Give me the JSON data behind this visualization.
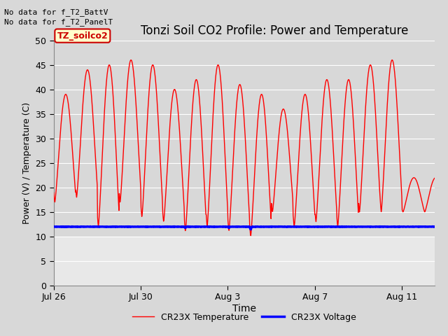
{
  "title": "Tonzi Soil CO2 Profile: Power and Temperature",
  "ylabel": "Power (V) / Temperature (C)",
  "xlabel": "Time",
  "ylim": [
    0,
    50
  ],
  "yticks": [
    0,
    5,
    10,
    15,
    20,
    25,
    30,
    35,
    40,
    45,
    50
  ],
  "background_color": "#d8d8d8",
  "plot_bg_color": "#d8d8d8",
  "no_data_text1": "No data for f_T2_BattV",
  "no_data_text2": "No data for f_T2_PanelT",
  "legend_label1": "CR23X Temperature",
  "legend_label2": "CR23X Voltage",
  "box_label": "TZ_soilco2",
  "box_facecolor": "#ffffcc",
  "box_edgecolor": "#cc0000",
  "temp_color": "#ff0000",
  "voltage_color": "#0000ff",
  "temp_linewidth": 1.0,
  "voltage_linewidth": 2.5,
  "voltage_value": 12.0,
  "xtick_labels": [
    "Jul 26",
    "Jul 30",
    "Aug 3",
    "Aug 7",
    "Aug 11"
  ],
  "xtick_days": [
    0,
    4,
    8,
    12,
    16
  ],
  "total_days": 17.5,
  "grid_color": "#ffffff",
  "strip_color": "#e8e8e8"
}
